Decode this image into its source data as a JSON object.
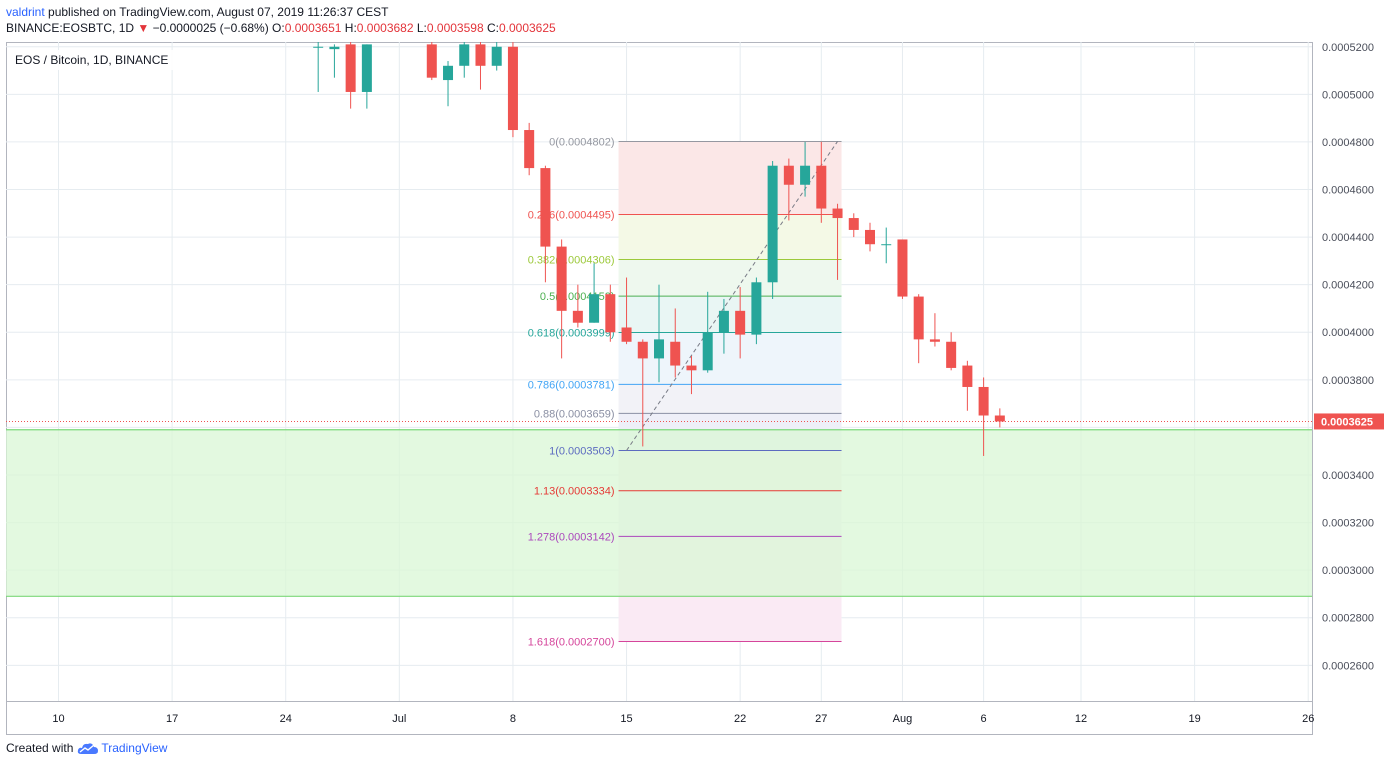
{
  "header": {
    "user": "valdrint",
    "published": " published on TradingView.com, August 07, 2019 11:26:37 CEST",
    "symbol": "BINANCE:EOSBTC, 1D",
    "arrow": "▼",
    "change": "−0.0000025 (−0.68%)",
    "o_label": "O:",
    "o_value": "0.0003651",
    "h_label": "H:",
    "h_value": "0.0003682",
    "l_label": "L:",
    "l_value": "0.0003598",
    "c_label": "C:",
    "c_value": "0.0003625"
  },
  "footer": {
    "created": "Created with",
    "brand": "TradingView"
  },
  "colors": {
    "up": "#26a69a",
    "down": "#ef5350",
    "grid": "#e6ecf0",
    "zone_fill": "#d9f7d6",
    "zone_line": "#7dd87a",
    "price_line": "#ef5350"
  },
  "chart_data": {
    "type": "candlestick",
    "title": "EOS / Bitcoin, 1D, BINANCE",
    "current_price_label": "0.0003625",
    "current_price": 0.0003625,
    "ylim": [
      0.000245,
      0.000522
    ],
    "x_ticks": [
      {
        "label": "10",
        "day": 10
      },
      {
        "label": "17",
        "day": 17
      },
      {
        "label": "24",
        "day": 24
      },
      {
        "label": "Jul",
        "day": 31
      },
      {
        "label": "8",
        "day": 38
      },
      {
        "label": "15",
        "day": 45
      },
      {
        "label": "22",
        "day": 52
      },
      {
        "label": "27",
        "day": 57
      },
      {
        "label": "Aug",
        "day": 62
      },
      {
        "label": "6",
        "day": 67
      },
      {
        "label": "12",
        "day": 73
      },
      {
        "label": "19",
        "day": 80
      },
      {
        "label": "26",
        "day": 87
      }
    ],
    "y_ticks": [
      "0.0005200",
      "0.0005000",
      "0.0004800",
      "0.0004600",
      "0.0004400",
      "0.0004200",
      "0.0004000",
      "0.0003800",
      "0.0003400",
      "0.0003200",
      "0.0003000",
      "0.0002800",
      "0.0002600"
    ],
    "support_zone": [
      0.000289,
      0.000359
    ],
    "fib_levels": [
      {
        "label": "0(0.0004802)",
        "value": 0.0004802,
        "color": "#9598a1"
      },
      {
        "label": "0.236(0.0004495)",
        "value": 0.0004495,
        "color": "#ef5350"
      },
      {
        "label": "0.382(0.0004306)",
        "value": 0.0004306,
        "color": "#9cc93a"
      },
      {
        "label": "0.5(0.0004152)",
        "value": 0.0004152,
        "color": "#4caf50"
      },
      {
        "label": "0.618(0.0003999)",
        "value": 0.0003999,
        "color": "#26a69a"
      },
      {
        "label": "0.786(0.0003781)",
        "value": 0.0003781,
        "color": "#42a5f5"
      },
      {
        "label": "0.88(0.0003659)",
        "value": 0.0003659,
        "color": "#8a8fa3"
      },
      {
        "label": "1(0.0003503)",
        "value": 0.0003503,
        "color": "#5c6bc0"
      },
      {
        "label": "1.13(0.0003334)",
        "value": 0.0003334,
        "color": "#e53935"
      },
      {
        "label": "1.278(0.0003142)",
        "value": 0.0003142,
        "color": "#ab47bc"
      },
      {
        "label": "1.618(0.0002700)",
        "value": 0.00027,
        "color": "#d5459b"
      }
    ],
    "fib_range_days": [
      45,
      58
    ],
    "trend_line": {
      "from_day": 45,
      "from_value": 0.0003503,
      "to_day": 58,
      "to_value": 0.0004802
    },
    "candles": [
      {
        "day": 26,
        "o": 0.00052,
        "h": 0.000523,
        "l": 0.000501,
        "c": 0.00052
      },
      {
        "day": 27,
        "o": 0.000519,
        "h": 0.000521,
        "l": 0.000507,
        "c": 0.00052
      },
      {
        "day": 28,
        "o": 0.000521,
        "h": 0.000522,
        "l": 0.000494,
        "c": 0.000501
      },
      {
        "day": 29,
        "o": 0.000501,
        "h": 0.000521,
        "l": 0.000494,
        "c": 0.000521
      },
      {
        "day": 33,
        "o": 0.000521,
        "h": 0.000522,
        "l": 0.000506,
        "c": 0.000507
      },
      {
        "day": 34,
        "o": 0.000506,
        "h": 0.000514,
        "l": 0.000495,
        "c": 0.000512
      },
      {
        "day": 35,
        "o": 0.000512,
        "h": 0.000522,
        "l": 0.000507,
        "c": 0.000521
      },
      {
        "day": 36,
        "o": 0.000521,
        "h": 0.000522,
        "l": 0.000502,
        "c": 0.000512
      },
      {
        "day": 37,
        "o": 0.000512,
        "h": 0.000522,
        "l": 0.00051,
        "c": 0.00052
      },
      {
        "day": 38,
        "o": 0.00052,
        "h": 0.000522,
        "l": 0.000482,
        "c": 0.000485
      },
      {
        "day": 39,
        "o": 0.000485,
        "h": 0.000488,
        "l": 0.000466,
        "c": 0.000469
      },
      {
        "day": 40,
        "o": 0.000469,
        "h": 0.00047,
        "l": 0.000421,
        "c": 0.000436
      },
      {
        "day": 41,
        "o": 0.000436,
        "h": 0.000439,
        "l": 0.000389,
        "c": 0.000409
      },
      {
        "day": 42,
        "o": 0.000409,
        "h": 0.00042,
        "l": 0.000402,
        "c": 0.000404
      },
      {
        "day": 43,
        "o": 0.000404,
        "h": 0.000429,
        "l": 0.000404,
        "c": 0.000416
      },
      {
        "day": 44,
        "o": 0.000416,
        "h": 0.00042,
        "l": 0.000396,
        "c": 0.0004
      },
      {
        "day": 45,
        "o": 0.000402,
        "h": 0.000423,
        "l": 0.000395,
        "c": 0.000396
      },
      {
        "day": 46,
        "o": 0.000396,
        "h": 0.000397,
        "l": 0.000352,
        "c": 0.000389
      },
      {
        "day": 47,
        "o": 0.000389,
        "h": 0.00042,
        "l": 0.000379,
        "c": 0.000397
      },
      {
        "day": 48,
        "o": 0.000396,
        "h": 0.00041,
        "l": 0.000381,
        "c": 0.000386
      },
      {
        "day": 49,
        "o": 0.000386,
        "h": 0.00039,
        "l": 0.000374,
        "c": 0.000384
      },
      {
        "day": 50,
        "o": 0.000384,
        "h": 0.000417,
        "l": 0.000383,
        "c": 0.0004
      },
      {
        "day": 51,
        "o": 0.0004,
        "h": 0.000414,
        "l": 0.000391,
        "c": 0.000409
      },
      {
        "day": 52,
        "o": 0.000409,
        "h": 0.000419,
        "l": 0.000389,
        "c": 0.000399
      },
      {
        "day": 53,
        "o": 0.000399,
        "h": 0.000423,
        "l": 0.000395,
        "c": 0.000421
      },
      {
        "day": 54,
        "o": 0.000421,
        "h": 0.000472,
        "l": 0.000414,
        "c": 0.00047
      },
      {
        "day": 55,
        "o": 0.00047,
        "h": 0.000473,
        "l": 0.000447,
        "c": 0.000462
      },
      {
        "day": 56,
        "o": 0.000462,
        "h": 0.00048,
        "l": 0.000457,
        "c": 0.00047
      },
      {
        "day": 57,
        "o": 0.00047,
        "h": 0.00048,
        "l": 0.000446,
        "c": 0.000452
      },
      {
        "day": 58,
        "o": 0.000452,
        "h": 0.000454,
        "l": 0.000422,
        "c": 0.000448
      },
      {
        "day": 59,
        "o": 0.000448,
        "h": 0.00045,
        "l": 0.00044,
        "c": 0.000443
      },
      {
        "day": 60,
        "o": 0.000443,
        "h": 0.000446,
        "l": 0.000434,
        "c": 0.000437
      },
      {
        "day": 61,
        "o": 0.000437,
        "h": 0.000444,
        "l": 0.000429,
        "c": 0.000437
      },
      {
        "day": 62,
        "o": 0.000439,
        "h": 0.000439,
        "l": 0.000414,
        "c": 0.000415
      },
      {
        "day": 63,
        "o": 0.000415,
        "h": 0.000416,
        "l": 0.000387,
        "c": 0.000397
      },
      {
        "day": 64,
        "o": 0.000397,
        "h": 0.000408,
        "l": 0.000394,
        "c": 0.000396
      },
      {
        "day": 65,
        "o": 0.000396,
        "h": 0.0004,
        "l": 0.000384,
        "c": 0.000385
      },
      {
        "day": 66,
        "o": 0.000386,
        "h": 0.000388,
        "l": 0.000367,
        "c": 0.000377
      },
      {
        "day": 67,
        "o": 0.000377,
        "h": 0.000381,
        "l": 0.000348,
        "c": 0.000365
      },
      {
        "day": 68,
        "o": 0.000365,
        "h": 0.000368,
        "l": 0.00036,
        "c": 0.0003625
      }
    ]
  }
}
